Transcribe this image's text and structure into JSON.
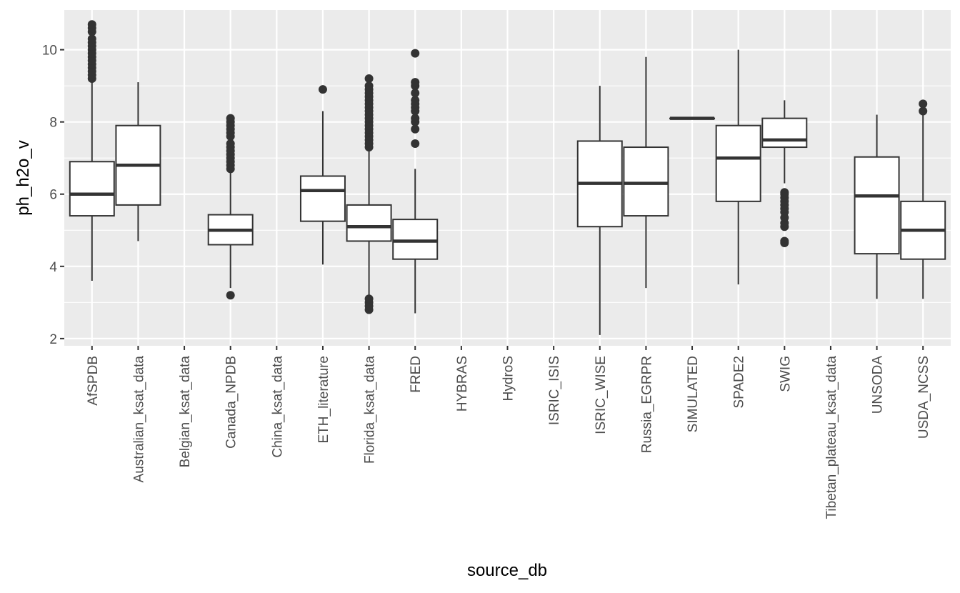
{
  "chart_data": {
    "type": "boxplot",
    "title": "",
    "xlabel": "source_db",
    "ylabel": "ph_h2o_v",
    "ylim": [
      1.8,
      11.1
    ],
    "y_ticks": [
      2,
      4,
      6,
      8,
      10
    ],
    "y_tick_labels": [
      "2",
      "4",
      "6",
      "8",
      "10"
    ],
    "categories": [
      "AfSPDB",
      "Australian_ksat_data",
      "Belgian_ksat_data",
      "Canada_NPDB",
      "China_ksat_data",
      "ETH_literature",
      "Florida_ksat_data",
      "FRED",
      "HYBRAS",
      "HydroS",
      "ISRIC_ISIS",
      "ISRIC_WISE",
      "Russia_EGRPR",
      "SIMULATED",
      "SPADE2",
      "SWIG",
      "Tibetan_plateau_ksat_data",
      "UNSODA",
      "USDA_NCSS"
    ],
    "boxes": [
      {
        "category": "AfSPDB",
        "lower_whisker": 3.6,
        "q1": 5.4,
        "median": 6.0,
        "q3": 6.9,
        "upper_whisker": 9.2,
        "outliers": [
          9.2,
          9.3,
          9.4,
          9.5,
          9.6,
          9.7,
          9.8,
          9.9,
          10.0,
          10.1,
          10.2,
          10.3,
          10.5,
          10.6,
          10.7
        ]
      },
      {
        "category": "Australian_ksat_data",
        "lower_whisker": 4.7,
        "q1": 5.7,
        "median": 6.8,
        "q3": 7.9,
        "upper_whisker": 9.1,
        "outliers": []
      },
      {
        "category": "Canada_NPDB",
        "lower_whisker": 3.4,
        "q1": 4.6,
        "median": 5.0,
        "q3": 5.43,
        "upper_whisker": 6.65,
        "outliers": [
          3.2,
          6.7,
          6.8,
          6.9,
          7.0,
          7.1,
          7.2,
          7.3,
          7.4,
          7.6,
          7.7,
          7.8,
          7.9,
          8.0,
          8.1
        ]
      },
      {
        "category": "ETH_literature",
        "lower_whisker": 4.05,
        "q1": 5.25,
        "median": 6.1,
        "q3": 6.5,
        "upper_whisker": 8.3,
        "outliers": [
          8.9
        ]
      },
      {
        "category": "Florida_ksat_data",
        "lower_whisker": 3.2,
        "q1": 4.7,
        "median": 5.1,
        "q3": 5.7,
        "upper_whisker": 7.2,
        "outliers": [
          2.8,
          2.9,
          3.0,
          3.1,
          7.3,
          7.4,
          7.5,
          7.6,
          7.7,
          7.8,
          7.9,
          8.0,
          8.1,
          8.2,
          8.3,
          8.4,
          8.5,
          8.6,
          8.7,
          8.8,
          8.9,
          9.0,
          9.2
        ]
      },
      {
        "category": "FRED",
        "lower_whisker": 2.7,
        "q1": 4.2,
        "median": 4.7,
        "q3": 5.3,
        "upper_whisker": 6.7,
        "outliers": [
          7.4,
          7.8,
          8.0,
          8.1,
          8.3,
          8.4,
          8.5,
          8.6,
          8.8,
          9.0,
          9.1,
          9.9
        ]
      },
      {
        "category": "ISRIC_WISE",
        "lower_whisker": 2.1,
        "q1": 5.1,
        "median": 6.3,
        "q3": 7.47,
        "upper_whisker": 9.0,
        "outliers": []
      },
      {
        "category": "Russia_EGRPR",
        "lower_whisker": 3.4,
        "q1": 5.4,
        "median": 6.3,
        "q3": 7.3,
        "upper_whisker": 9.8,
        "outliers": []
      },
      {
        "category": "SIMULATED",
        "lower_whisker": 8.1,
        "q1": 8.1,
        "median": 8.1,
        "q3": 8.1,
        "upper_whisker": 8.1,
        "outliers": []
      },
      {
        "category": "SPADE2",
        "lower_whisker": 3.5,
        "q1": 5.8,
        "median": 7.0,
        "q3": 7.9,
        "upper_whisker": 10.0,
        "outliers": []
      },
      {
        "category": "SWIG",
        "lower_whisker": 6.3,
        "q1": 7.3,
        "median": 7.5,
        "q3": 8.1,
        "upper_whisker": 8.6,
        "outliers": [
          4.65,
          4.7,
          5.1,
          5.2,
          5.35,
          5.5,
          5.6,
          5.7,
          5.8,
          5.9,
          6.0,
          6.05
        ]
      },
      {
        "category": "UNSODA",
        "lower_whisker": 3.1,
        "q1": 4.35,
        "median": 5.95,
        "q3": 7.03,
        "upper_whisker": 8.2,
        "outliers": []
      },
      {
        "category": "USDA_NCSS",
        "lower_whisker": 3.1,
        "q1": 4.2,
        "median": 5.0,
        "q3": 5.8,
        "upper_whisker": 8.2,
        "outliers": [
          8.3,
          8.5
        ]
      }
    ],
    "colors": {
      "panel_background": "#ebebeb",
      "grid_major": "#ffffff",
      "box_line": "#333333",
      "box_fill": "#ffffff",
      "outlier": "#333333",
      "tick_text": "#4d4d4d",
      "title_text": "#000000"
    }
  }
}
